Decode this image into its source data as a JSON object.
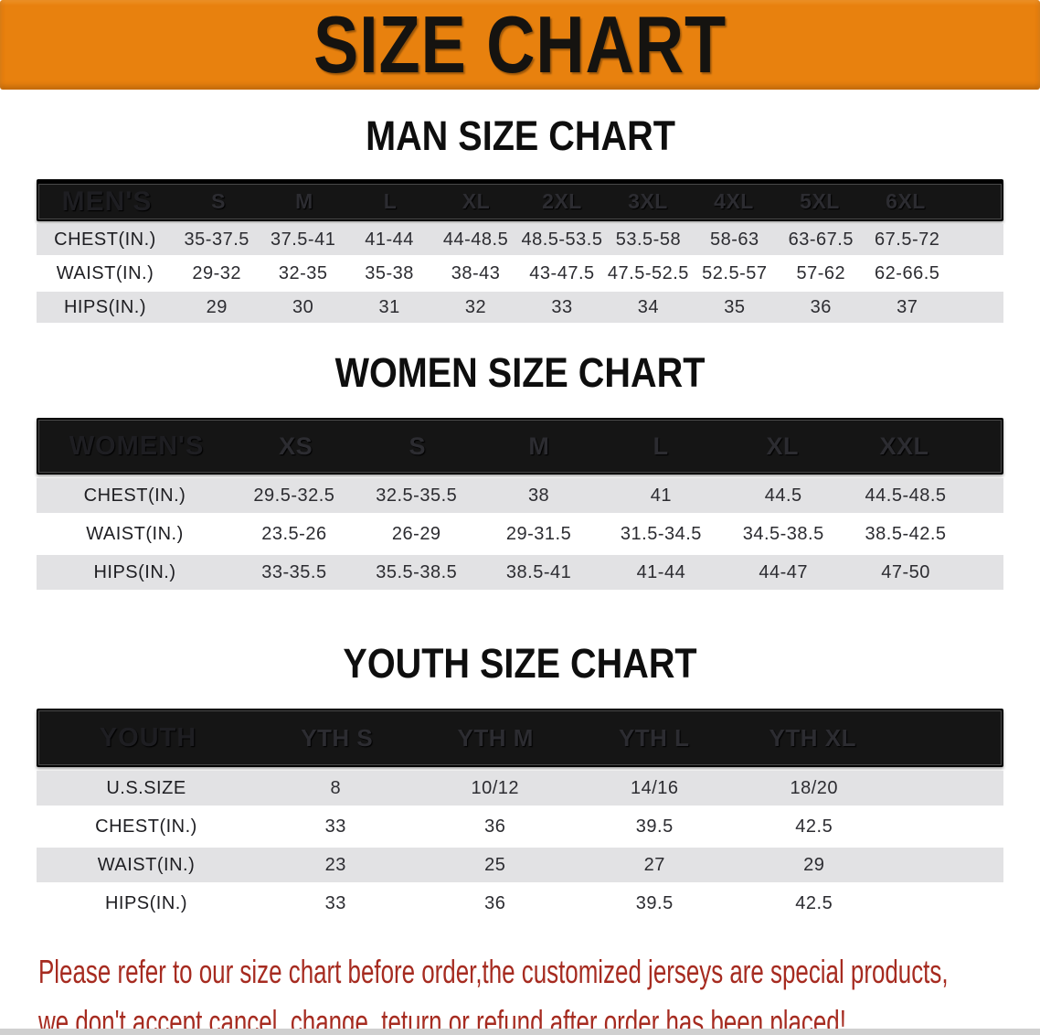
{
  "banner": {
    "title": "SIZE CHART"
  },
  "sections": [
    {
      "heading": "MAN SIZE CHART",
      "label": "MEN'S",
      "columns": [
        "S",
        "M",
        "L",
        "XL",
        "2XL",
        "3XL",
        "4XL",
        "5XL",
        "6XL"
      ],
      "rows": [
        {
          "label": "CHEST(IN.)",
          "values": [
            "35-37.5",
            "37.5-41",
            "41-44",
            "44-48.5",
            "48.5-53.5",
            "53.5-58",
            "58-63",
            "63-67.5",
            "67.5-72"
          ]
        },
        {
          "label": "WAIST(IN.)",
          "values": [
            "29-32",
            "32-35",
            "35-38",
            "38-43",
            "43-47.5",
            "47.5-52.5",
            "52.5-57",
            "57-62",
            "62-66.5"
          ]
        },
        {
          "label": "HIPS(IN.)",
          "values": [
            "29",
            "30",
            "31",
            "32",
            "33",
            "34",
            "35",
            "36",
            "37"
          ]
        }
      ]
    },
    {
      "heading": "WOMEN SIZE CHART",
      "label": "WOMEN'S",
      "columns": [
        "XS",
        "S",
        "M",
        "L",
        "XL",
        "XXL"
      ],
      "rows": [
        {
          "label": "CHEST(IN.)",
          "values": [
            "29.5-32.5",
            "32.5-35.5",
            "38",
            "41",
            "44.5",
            "44.5-48.5"
          ]
        },
        {
          "label": "WAIST(IN.)",
          "values": [
            "23.5-26",
            "26-29",
            "29-31.5",
            "31.5-34.5",
            "34.5-38.5",
            "38.5-42.5"
          ]
        },
        {
          "label": "HIPS(IN.)",
          "values": [
            "33-35.5",
            "35.5-38.5",
            "38.5-41",
            "41-44",
            "44-47",
            "47-50"
          ]
        }
      ]
    },
    {
      "heading": "YOUTH SIZE CHART",
      "label": "YOUTH",
      "columns": [
        "YTH S",
        "YTH M",
        "YTH L",
        "YTH XL"
      ],
      "rows": [
        {
          "label": "U.S.SIZE",
          "values": [
            "8",
            "10/12",
            "14/16",
            "18/20"
          ]
        },
        {
          "label": "CHEST(IN.)",
          "values": [
            "33",
            "36",
            "39.5",
            "42.5"
          ]
        },
        {
          "label": "WAIST(IN.)",
          "values": [
            "23",
            "25",
            "27",
            "29"
          ]
        },
        {
          "label": "HIPS(IN.)",
          "values": [
            "33",
            "36",
            "39.5",
            "42.5"
          ]
        }
      ]
    }
  ],
  "footer": {
    "line1": "Please refer to our size chart before order,the customized jerseys are special products,",
    "line2": "we don't accept cancel, change, teturn or refund after order has been placed!"
  },
  "colors": {
    "banner_bg": "#E8810E",
    "heading_text": "#0E0E0E",
    "table_header_bg": "#151515",
    "table_header_text": "#FFFFFF",
    "stripe": "#E2E2E4",
    "notice_text": "#A62B20",
    "bottom_bar": "#D0D0D0"
  }
}
